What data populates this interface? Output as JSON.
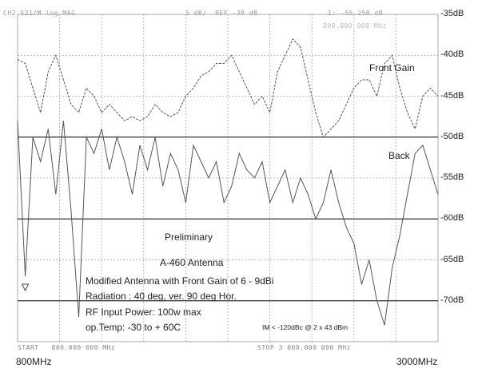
{
  "header": {
    "left": "CH2 S21/M log MAG",
    "mid": "5 dB/  REF -38 dB",
    "right": "1: -55.250 dB",
    "marker": "800.000 000 MHz"
  },
  "footer": {
    "start": "START   800.000 000 MHz",
    "stop": "STOP 3 000.000 000 MHz"
  },
  "freq_labels": {
    "start": "800MHz",
    "stop": "3000MHz"
  },
  "annotations": {
    "front_gain": "Front Gain",
    "back": "Back",
    "preliminary": "Preliminary",
    "model": "A-460 Antenna",
    "desc": "Modified Antenna with Front Gain of 6 - 9dBi",
    "radiation": "Radiation :  40 deg, ver. 90 deg Hor.",
    "rf_power": "RF Input Power: 100w max",
    "op_temp": "op.Temp:   -30 to + 60C",
    "im": "IM < -120dBc  @ 2 x 43 dBm"
  },
  "colors": {
    "trace": "#555555",
    "grid": "#aaaaaa",
    "dark_grid": "#333333",
    "text": "#222222"
  },
  "chart_data": {
    "type": "line",
    "xlim": [
      800,
      3000
    ],
    "ylim": [
      -75,
      -35
    ],
    "y_unit": "dB",
    "ytick_labels": [
      "-35dB",
      "-40dB",
      "-45dB",
      "-50dB",
      "-55dB",
      "-60dB",
      "-65dB",
      "-70dB"
    ],
    "yticks": [
      -35,
      -40,
      -45,
      -50,
      -55,
      -60,
      -65,
      -70
    ],
    "grid": true,
    "series": [
      {
        "name": "Front Gain",
        "x": [
          800,
          840,
          880,
          920,
          960,
          1000,
          1040,
          1080,
          1120,
          1160,
          1200,
          1240,
          1280,
          1320,
          1360,
          1400,
          1440,
          1480,
          1520,
          1560,
          1600,
          1640,
          1680,
          1720,
          1760,
          1800,
          1840,
          1880,
          1920,
          1960,
          2000,
          2040,
          2080,
          2120,
          2160,
          2200,
          2240,
          2280,
          2320,
          2360,
          2400,
          2440,
          2480,
          2520,
          2560,
          2600,
          2640,
          2680,
          2720,
          2760,
          2800,
          2840,
          2880,
          2920,
          2960,
          3000
        ],
        "y": [
          -40.5,
          -41,
          -44,
          -47,
          -42,
          -40,
          -43,
          -46,
          -47,
          -44,
          -45,
          -47,
          -46,
          -47,
          -48,
          -47.5,
          -48,
          -47.5,
          -46,
          -47,
          -47.5,
          -47,
          -45,
          -44,
          -42.5,
          -42,
          -41,
          -41,
          -40,
          -42,
          -44,
          -46,
          -45,
          -47,
          -42,
          -40,
          -38,
          -39,
          -43,
          -47,
          -50,
          -49,
          -48,
          -46,
          -44,
          -43,
          -43,
          -45,
          -41,
          -40,
          -44,
          -47,
          -49,
          -45,
          -44,
          -45
        ]
      },
      {
        "name": "Back",
        "x": [
          800,
          840,
          880,
          920,
          960,
          1000,
          1040,
          1080,
          1120,
          1160,
          1200,
          1240,
          1280,
          1320,
          1360,
          1400,
          1440,
          1480,
          1520,
          1560,
          1600,
          1640,
          1680,
          1720,
          1760,
          1800,
          1840,
          1880,
          1920,
          1960,
          2000,
          2040,
          2080,
          2120,
          2160,
          2200,
          2240,
          2280,
          2320,
          2360,
          2400,
          2440,
          2480,
          2520,
          2560,
          2600,
          2640,
          2680,
          2720,
          2760,
          2800,
          2840,
          2880,
          2920,
          2960,
          3000
        ],
        "y": [
          -48,
          -67,
          -50,
          -53,
          -49,
          -57,
          -48,
          -59,
          -72,
          -50,
          -52,
          -49,
          -54,
          -50,
          -53,
          -57,
          -51,
          -54,
          -50,
          -56,
          -52,
          -54,
          -58,
          -51,
          -53,
          -55,
          -53,
          -58,
          -56,
          -52,
          -54,
          -55,
          -53,
          -58,
          -56,
          -54,
          -58,
          -55,
          -57,
          -60,
          -58,
          -54,
          -58,
          -61,
          -63,
          -68,
          -65,
          -70,
          -73,
          -66,
          -62,
          -57,
          -52,
          -51,
          -54,
          -57
        ]
      }
    ]
  }
}
